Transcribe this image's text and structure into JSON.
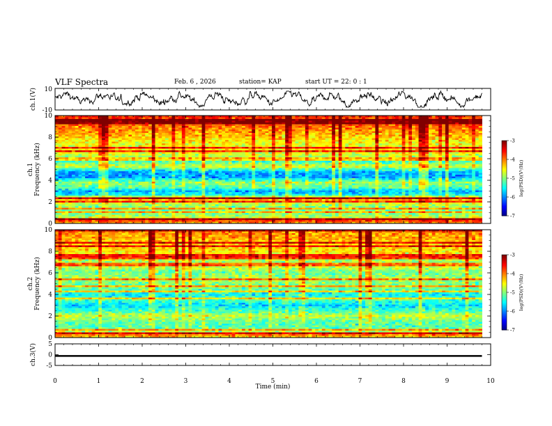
{
  "header": {
    "title": "VLF Spectra",
    "date": "Feb. 6 , 2026",
    "station": "station= KAP",
    "start_ut": "start UT =  22: 0  : 1"
  },
  "chart_data": [
    {
      "type": "line",
      "ylabel": "ch.1(V)",
      "ylim": [
        -10,
        10
      ],
      "y_ticks": [
        "10",
        "-10"
      ],
      "x": {
        "min": 0,
        "max": 10
      },
      "data_x_end": 9.8,
      "signal": "noisy waveform oscillating between about -7 and +7 V"
    },
    {
      "type": "heatmap",
      "ylabel_channel": "ch.1",
      "ylabel": "Frequency (kHz)",
      "ylim": [
        0,
        10
      ],
      "y_ticks": [
        "0",
        "2",
        "4",
        "6",
        "8",
        "10"
      ],
      "x": {
        "min": 0,
        "max": 10
      },
      "data_x_end": 9.8,
      "colorbar": {
        "label": "log(PSD)(V²/Hz)",
        "min": -7,
        "max": -3,
        "ticks": [
          "-3",
          "-4",
          "-5",
          "-6",
          "-7"
        ]
      },
      "profile": [
        {
          "f": 0.0,
          "v": -4.2
        },
        {
          "f": 0.3,
          "v": -3.6
        },
        {
          "f": 0.6,
          "v": -4.8
        },
        {
          "f": 1.0,
          "v": -5.1
        },
        {
          "f": 1.5,
          "v": -5.0
        },
        {
          "f": 2.0,
          "v": -4.6
        },
        {
          "f": 2.3,
          "v": -3.9
        },
        {
          "f": 2.6,
          "v": -5.4
        },
        {
          "f": 3.0,
          "v": -5.8
        },
        {
          "f": 3.3,
          "v": -5.2
        },
        {
          "f": 3.8,
          "v": -4.9
        },
        {
          "f": 4.3,
          "v": -5.9
        },
        {
          "f": 4.8,
          "v": -5.8
        },
        {
          "f": 5.3,
          "v": -4.6
        },
        {
          "f": 5.8,
          "v": -5.4
        },
        {
          "f": 6.3,
          "v": -4.7
        },
        {
          "f": 6.8,
          "v": -4.4
        },
        {
          "f": 7.3,
          "v": -4.6
        },
        {
          "f": 8.0,
          "v": -4.3
        },
        {
          "f": 8.8,
          "v": -4.0
        },
        {
          "f": 9.5,
          "v": -3.8
        },
        {
          "f": 10.0,
          "v": -3.6
        }
      ]
    },
    {
      "type": "heatmap",
      "ylabel_channel": "ch.2",
      "ylabel": "Frequency (kHz)",
      "ylim": [
        0,
        10
      ],
      "y_ticks": [
        "0",
        "2",
        "4",
        "6",
        "8",
        "10"
      ],
      "x": {
        "min": 0,
        "max": 10
      },
      "data_x_end": 9.8,
      "colorbar": {
        "label": "log(PSD)(V²/Hz)",
        "min": -7,
        "max": -3,
        "ticks": [
          "-3",
          "-4",
          "-5",
          "-6",
          "-7"
        ]
      },
      "profile": [
        {
          "f": 0.0,
          "v": -4.4
        },
        {
          "f": 0.3,
          "v": -3.9
        },
        {
          "f": 0.6,
          "v": -4.9
        },
        {
          "f": 1.0,
          "v": -5.2
        },
        {
          "f": 1.5,
          "v": -5.1
        },
        {
          "f": 2.0,
          "v": -4.7
        },
        {
          "f": 2.5,
          "v": -5.3
        },
        {
          "f": 3.0,
          "v": -5.6
        },
        {
          "f": 3.5,
          "v": -5.2
        },
        {
          "f": 4.0,
          "v": -5.5
        },
        {
          "f": 4.5,
          "v": -5.1
        },
        {
          "f": 5.0,
          "v": -5.0
        },
        {
          "f": 5.5,
          "v": -4.8
        },
        {
          "f": 6.0,
          "v": -5.1
        },
        {
          "f": 6.5,
          "v": -4.7
        },
        {
          "f": 7.0,
          "v": -4.9
        },
        {
          "f": 7.5,
          "v": -4.5
        },
        {
          "f": 8.0,
          "v": -4.4
        },
        {
          "f": 8.8,
          "v": -4.3
        },
        {
          "f": 9.5,
          "v": -4.1
        },
        {
          "f": 10.0,
          "v": -4.0
        }
      ]
    },
    {
      "type": "line",
      "ylabel": "ch.3(V)",
      "ylim": [
        -5,
        5
      ],
      "y_ticks": [
        "5",
        "0",
        "-5"
      ],
      "x": {
        "min": 0,
        "max": 10
      },
      "data_x_end": 9.8,
      "signal": "thick flat trace near -0.5 V"
    },
    {
      "type": "axis",
      "xlabel": "Time (min)",
      "xlim": [
        0,
        10
      ],
      "x_ticks": [
        "0",
        "1",
        "2",
        "3",
        "4",
        "5",
        "6",
        "7",
        "8",
        "9",
        "10"
      ]
    }
  ]
}
